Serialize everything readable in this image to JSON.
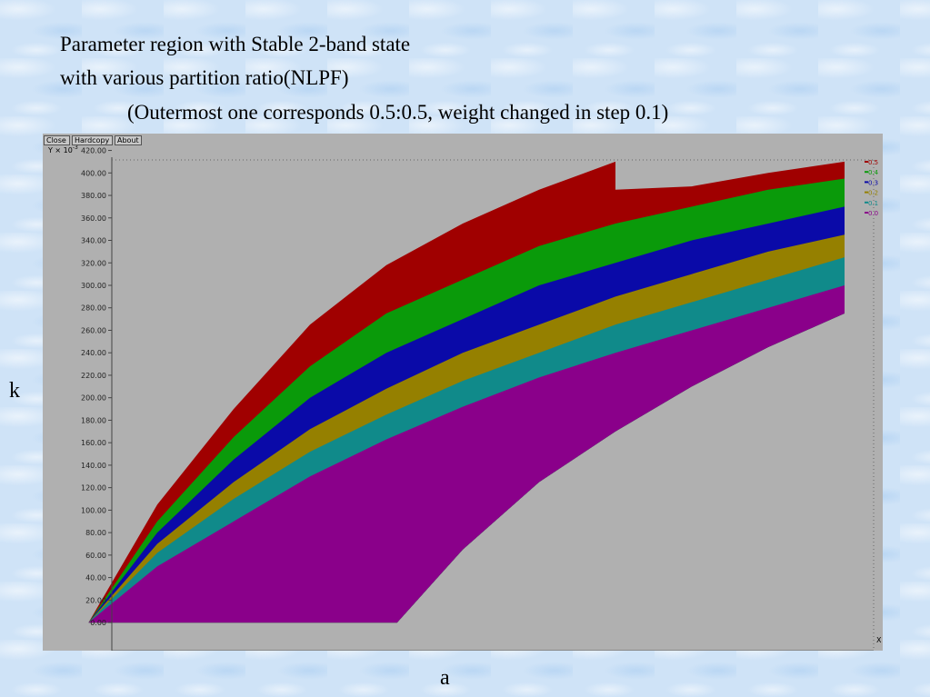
{
  "title": {
    "line1": "Parameter region with Stable 2-band state",
    "line2": "with various partition ratio(NLPF)",
    "line3": "(Outermost one corresponds 0.5:0.5, weight changed in step 0.1)"
  },
  "axes": {
    "y_letter": "k",
    "x_letter": "a"
  },
  "window": {
    "buttons": [
      "Close",
      "Hardcopy",
      "About"
    ],
    "y_unit_label": "Y × 10",
    "y_unit_exp": "-3",
    "x_unit_label": "X"
  },
  "colors": {
    "0.5": "#a00000",
    "0.4": "#0a9a0a",
    "0.3": "#0a0aa8",
    "0.2": "#958000",
    "0.1": "#108a8a",
    "0.0": "#8a008a",
    "plot_bg": "#b0b0b0"
  },
  "chart_data": {
    "type": "area",
    "x_label": "a",
    "y_label": "k",
    "xlim": [
      0.95,
      2.05
    ],
    "ylim": [
      -0.025,
      0.435
    ],
    "x_ticks": [
      "1.00",
      "1.10",
      "1.20",
      "1.30",
      "1.40",
      "1.50",
      "1.60",
      "1.70",
      "1.80",
      "1.90",
      "2.00"
    ],
    "y_ticks": [
      "0.00",
      "20.00",
      "40.00",
      "60.00",
      "80.00",
      "100.00",
      "120.00",
      "140.00",
      "160.00",
      "180.00",
      "200.00",
      "220.00",
      "240.00",
      "260.00",
      "280.00",
      "300.00",
      "320.00",
      "340.00",
      "360.00",
      "380.00",
      "400.00",
      "420.00"
    ],
    "legend": [
      "0.5",
      "0.4",
      "0.3",
      "0.2",
      "0.1",
      "0.0"
    ],
    "legend_position": "right",
    "regions": [
      {
        "name": "0.5",
        "upper": [
          [
            1.01,
            0.0
          ],
          [
            1.1,
            0.105
          ],
          [
            1.2,
            0.19
          ],
          [
            1.3,
            0.265
          ],
          [
            1.4,
            0.318
          ],
          [
            1.5,
            0.355
          ],
          [
            1.6,
            0.385
          ],
          [
            1.7,
            0.41
          ],
          [
            1.7,
            0.385
          ],
          [
            1.8,
            0.388
          ],
          [
            1.9,
            0.4
          ],
          [
            2.0,
            0.41
          ]
        ]
      },
      {
        "name": "0.4",
        "upper": [
          [
            1.01,
            0.0
          ],
          [
            1.1,
            0.09
          ],
          [
            1.2,
            0.165
          ],
          [
            1.3,
            0.228
          ],
          [
            1.4,
            0.275
          ],
          [
            1.5,
            0.305
          ],
          [
            1.6,
            0.335
          ],
          [
            1.7,
            0.355
          ],
          [
            1.8,
            0.37
          ],
          [
            1.9,
            0.385
          ],
          [
            2.0,
            0.395
          ]
        ]
      },
      {
        "name": "0.3",
        "upper": [
          [
            1.01,
            0.0
          ],
          [
            1.1,
            0.08
          ],
          [
            1.2,
            0.145
          ],
          [
            1.3,
            0.2
          ],
          [
            1.4,
            0.24
          ],
          [
            1.5,
            0.27
          ],
          [
            1.6,
            0.3
          ],
          [
            1.7,
            0.32
          ],
          [
            1.8,
            0.34
          ],
          [
            1.9,
            0.355
          ],
          [
            2.0,
            0.37
          ]
        ]
      },
      {
        "name": "0.2",
        "upper": [
          [
            1.01,
            0.0
          ],
          [
            1.1,
            0.07
          ],
          [
            1.2,
            0.125
          ],
          [
            1.3,
            0.172
          ],
          [
            1.4,
            0.208
          ],
          [
            1.5,
            0.24
          ],
          [
            1.6,
            0.265
          ],
          [
            1.7,
            0.29
          ],
          [
            1.8,
            0.31
          ],
          [
            1.9,
            0.33
          ],
          [
            2.0,
            0.345
          ]
        ]
      },
      {
        "name": "0.1",
        "upper": [
          [
            1.01,
            0.0
          ],
          [
            1.1,
            0.062
          ],
          [
            1.2,
            0.11
          ],
          [
            1.3,
            0.152
          ],
          [
            1.4,
            0.185
          ],
          [
            1.5,
            0.215
          ],
          [
            1.6,
            0.24
          ],
          [
            1.7,
            0.265
          ],
          [
            1.8,
            0.285
          ],
          [
            1.9,
            0.305
          ],
          [
            2.0,
            0.325
          ]
        ]
      },
      {
        "name": "0.0",
        "upper": [
          [
            1.01,
            0.0
          ],
          [
            1.1,
            0.05
          ],
          [
            1.2,
            0.09
          ],
          [
            1.3,
            0.13
          ],
          [
            1.4,
            0.163
          ],
          [
            1.5,
            0.192
          ],
          [
            1.6,
            0.218
          ],
          [
            1.7,
            0.24
          ],
          [
            1.8,
            0.26
          ],
          [
            1.9,
            0.28
          ],
          [
            2.0,
            0.3
          ]
        ]
      }
    ],
    "inner_boundary": [
      [
        1.01,
        0.0
      ],
      [
        1.414,
        0.0
      ],
      [
        1.5,
        0.065
      ],
      [
        1.6,
        0.125
      ],
      [
        1.7,
        0.17
      ],
      [
        1.8,
        0.21
      ],
      [
        1.9,
        0.245
      ],
      [
        2.0,
        0.275
      ]
    ]
  }
}
